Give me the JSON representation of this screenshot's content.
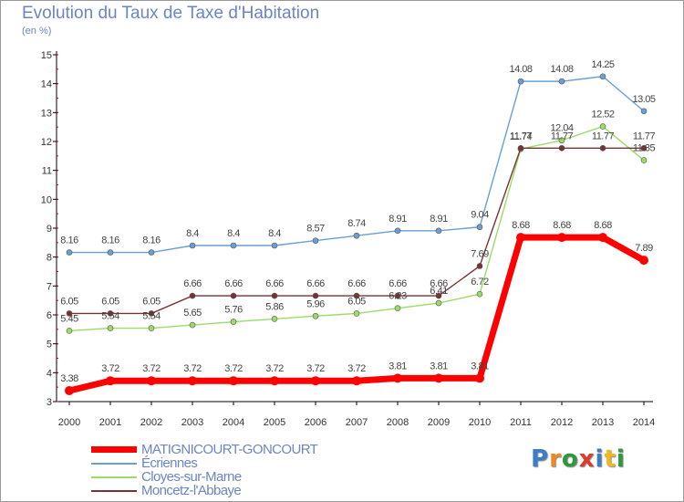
{
  "chart_data": {
    "type": "line",
    "title": "Evolution du Taux de Taxe d'Habitation",
    "subtitle": "(en %)",
    "xlabel": "",
    "ylabel": "",
    "x": [
      "2000",
      "2001",
      "2002",
      "2003",
      "2004",
      "2005",
      "2006",
      "2007",
      "2008",
      "2009",
      "2010",
      "2011",
      "2012",
      "2013",
      "2014"
    ],
    "y_ticks": [
      "3",
      "4",
      "5",
      "6",
      "7",
      "8",
      "9",
      "10",
      "11",
      "12",
      "13",
      "14",
      "15"
    ],
    "ylim": [
      3,
      15
    ],
    "grid": false,
    "legend_position": "bottom-left",
    "series": [
      {
        "name": "MATIGNICOURT-GONCOURT",
        "color": "#ff0000",
        "values": [
          3.38,
          3.72,
          3.72,
          3.72,
          3.72,
          3.72,
          3.72,
          3.72,
          3.81,
          3.81,
          3.81,
          8.68,
          8.68,
          8.68,
          7.89
        ],
        "labels": [
          "3.38",
          "3.72",
          "3.72",
          "3.72",
          "3.72",
          "3.72",
          "3.72",
          "3.72",
          "3.81",
          "3.81",
          "3.81",
          "8.68",
          "8.68",
          "8.68",
          "7.89"
        ]
      },
      {
        "name": "Écriennes",
        "color": "#6a9fd4",
        "values": [
          8.16,
          8.16,
          8.16,
          8.4,
          8.4,
          8.4,
          8.57,
          8.74,
          8.91,
          8.91,
          9.04,
          14.08,
          14.08,
          14.25,
          13.05
        ],
        "labels": [
          "8.16",
          "8.16",
          "8.16",
          "8.4",
          "8.4",
          "8.4",
          "8.57",
          "8.74",
          "8.91",
          "8.91",
          "9.04",
          "14.08",
          "14.08",
          "14.25",
          "13.05"
        ]
      },
      {
        "name": "Cloyes-sur-Marne",
        "color": "#99dd66",
        "values": [
          5.45,
          5.54,
          5.54,
          5.65,
          5.76,
          5.86,
          5.96,
          6.05,
          6.23,
          6.41,
          6.72,
          11.74,
          12.04,
          12.52,
          11.35
        ],
        "labels": [
          "5.45",
          "5.54",
          "5.54",
          "5.65",
          "5.76",
          "5.86",
          "5.96",
          "6.05",
          "6.23",
          "6.41",
          "6.72",
          "11.74",
          "12.04",
          "12.52",
          "11.35"
        ]
      },
      {
        "name": "Moncetz-l'Abbaye",
        "color": "#773333",
        "values": [
          6.05,
          6.05,
          6.05,
          6.66,
          6.66,
          6.66,
          6.66,
          6.66,
          6.66,
          6.66,
          7.69,
          11.77,
          11.77,
          11.77,
          11.77
        ],
        "labels": [
          "6.05",
          "6.05",
          "6.05",
          "6.66",
          "6.66",
          "6.66",
          "6.66",
          "6.66",
          "6.66",
          "6.66",
          "7.69",
          "11.77",
          "11.77",
          "11.77",
          "11.77"
        ]
      }
    ]
  },
  "brand": {
    "logo_text": "Proxiti",
    "logo_colors": [
      "#3a7dc8",
      "#f08a1c",
      "#2a9a3a",
      "#e03a2a",
      "#3a7dc8",
      "#f0b81c",
      "#2a9a3a"
    ]
  }
}
